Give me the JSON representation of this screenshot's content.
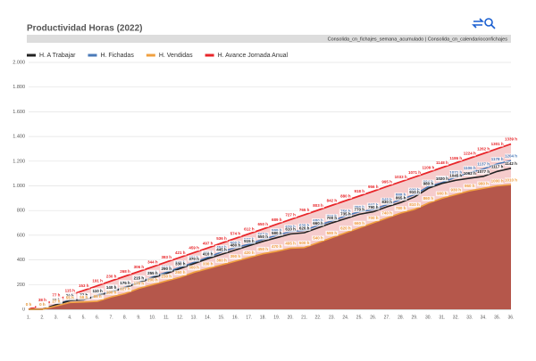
{
  "chart_data": {
    "type": "line",
    "title": "Productividad Horas (2022)",
    "subtitle": "Consolida_cn_fichajes_semana_acumulado | Consolida_cn_calendarioconfichajes",
    "categories": [
      "1.",
      "2.",
      "3.",
      "4.",
      "5.",
      "6.",
      "7.",
      "8.",
      "9.",
      "10.",
      "11.",
      "12.",
      "13.",
      "14.",
      "15.",
      "16.",
      "17.",
      "18.",
      "19.",
      "20.",
      "21.",
      "22.",
      "23.",
      "24.",
      "25.",
      "26.",
      "27.",
      "28.",
      "29.",
      "30.",
      "31.",
      "32.",
      "33.",
      "34.",
      "35.",
      "36."
    ],
    "ylim": [
      0,
      2000
    ],
    "yticks": [
      0,
      200,
      400,
      600,
      800,
      {
        "value": 1000,
        "label": "1.000"
      },
      {
        "value": 1200,
        "label": "1.200"
      },
      {
        "value": 1400,
        "label": "1.400"
      },
      {
        "value": 1600,
        "label": "1.600"
      },
      {
        "value": 1800,
        "label": "1.800"
      },
      {
        "value": 2000,
        "label": "2.000"
      }
    ],
    "grid": true,
    "legend": "top-left",
    "series": [
      {
        "name": "H. A Trabajar",
        "color": "#222222",
        "values": [
          0,
          0,
          38,
          70,
          77,
          110,
          140,
          175,
          215,
          255,
          290,
          330,
          370,
          410,
          445,
          480,
          515,
          550,
          580,
          610,
          620,
          660,
          700,
          735,
          770,
          790,
          830,
          865,
          910,
          980,
          1020,
          1045,
          1062,
          1077,
          1117,
          1142
        ],
        "value_labels": [
          "0 h",
          "0 h",
          "38 h",
          "70 h",
          "77 h",
          "110 h",
          "140 h",
          "175 h",
          "215 h",
          "255 h",
          "290 h",
          "330 h",
          "370 h",
          "410 h",
          "445 h",
          "480 h",
          "515 h",
          "550 h",
          "580 h",
          "610 h",
          "620 h",
          "660 h",
          "700 h",
          "735 h",
          "770 h",
          "790 h",
          "830 h",
          "865 h",
          "910 h",
          "980 h",
          "1020 h",
          "1045 h",
          "1062 h",
          "1077 h",
          "1117 h",
          "1142 h"
        ]
      },
      {
        "name": "H. Fichadas",
        "color": "#4a7ab8",
        "values": [
          0,
          0,
          38,
          77,
          77,
          115,
          145,
          180,
          219,
          263,
          300,
          340,
          380,
          421,
          464,
          500,
          527,
          567,
          599,
          629,
          639,
          680,
          716,
          756,
          790,
          807,
          848,
          888,
          929,
          994,
          1026,
          1071,
          1106,
          1137,
          1178,
          1204
        ],
        "value_labels": [
          "0 h",
          "0 h",
          "38 h",
          "77 h",
          "77 h",
          "115 h",
          "145 h",
          "180 h",
          "219 h",
          "263 h",
          "300 h",
          "340 h",
          "380 h",
          "421 h",
          "464 h",
          "500 h",
          "527 h",
          "567 h",
          "599 h",
          "629 h",
          "639 h",
          "680 h",
          "716 h",
          "756 h",
          "790 h",
          "807 h",
          "848 h",
          "888 h",
          "929 h",
          "994 h",
          "1026 h",
          "1071 h",
          "1106 h",
          "1137 h",
          "1178 h",
          "1204 h"
        ]
      },
      {
        "name": "H. Vendidas",
        "color": "#f0a040",
        "fill": "#b5574b",
        "values": [
          0,
          0,
          27,
          55,
          59,
          65,
          100,
          127,
          170,
          200,
          230,
          260,
          300,
          330,
          360,
          390,
          420,
          450,
          470,
          495,
          500,
          540,
          580,
          620,
          660,
          700,
          740,
          780,
          810,
          860,
          900,
          930,
          960,
          980,
          1000,
          1010
        ],
        "value_labels": [
          "0 h",
          "0 h",
          "27 h",
          "55 h",
          "59 h",
          "65 h",
          "100 h",
          "127 h",
          "170 h",
          "200 h",
          "230 h",
          "260 h",
          "300 h",
          "330 h",
          "360 h",
          "390 h",
          "420 h",
          "450 h",
          "470 h",
          "495 h",
          "500 h",
          "540 h",
          "580 h",
          "620 h",
          "660 h",
          "700 h",
          "740 h",
          "780 h",
          "810 h",
          "860 h",
          "900 h",
          "930 h",
          "960 h",
          "980 h",
          "1000 h",
          "1010 h"
        ]
      },
      {
        "name": "H. Avance Jornada Anual",
        "color": "#e8262a",
        "fill": "#f6cccc",
        "values": [
          0,
          38,
          77,
          115,
          153,
          191,
          230,
          268,
          306,
          344,
          383,
          421,
          459,
          497,
          536,
          574,
          612,
          650,
          689,
          727,
          765,
          803,
          842,
          880,
          918,
          956,
          995,
          1033,
          1071,
          1109,
          1148,
          1186,
          1224,
          1262,
          1301,
          1339
        ],
        "value_labels": [
          "0 h",
          "38 h",
          "77 h",
          "115 h",
          "153 h",
          "191 h",
          "230 h",
          "268 h",
          "306 h",
          "344 h",
          "383 h",
          "421 h",
          "459 h",
          "497 h",
          "536 h",
          "574 h",
          "612 h",
          "650 h",
          "689 h",
          "727 h",
          "765 h",
          "803 h",
          "842 h",
          "880 h",
          "918 h",
          "956 h",
          "995 h",
          "1033 h",
          "1071 h",
          "1109 h",
          "1148 h",
          "1186 h",
          "1224 h",
          "1262 h",
          "1301 h",
          "1339 h"
        ]
      }
    ]
  }
}
